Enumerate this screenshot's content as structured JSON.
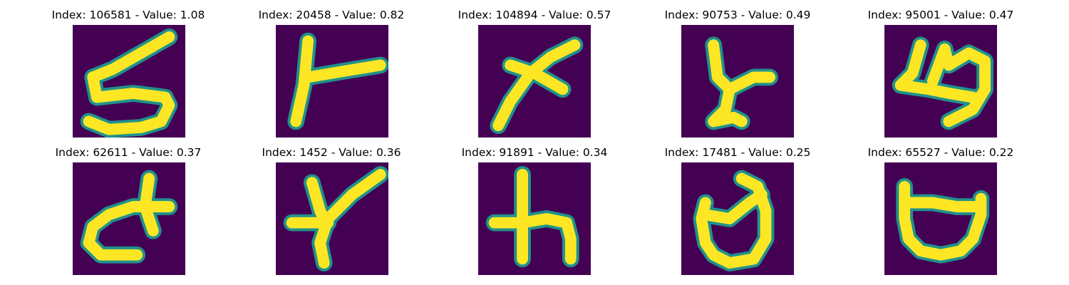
{
  "panels": [
    {
      "index": 106581,
      "value": "1.08",
      "title": "Index: 106581 - Value: 1.08",
      "glyph": "5"
    },
    {
      "index": 20458,
      "value": "0.82",
      "title": "Index: 20458 - Value: 0.82",
      "glyph": "ト"
    },
    {
      "index": 104894,
      "value": "0.57",
      "title": "Index: 104894 - Value: 0.57",
      "glyph": "x"
    },
    {
      "index": 90753,
      "value": "0.49",
      "title": "Index: 90753 - Value: 0.49",
      "glyph": "y"
    },
    {
      "index": 95001,
      "value": "0.47",
      "title": "Index: 95001 - Value: 0.47",
      "glyph": "y"
    },
    {
      "index": 62611,
      "value": "0.37",
      "title": "Index: 62611 - Value: 0.37",
      "glyph": "c"
    },
    {
      "index": 1452,
      "value": "0.36",
      "title": "Index: 1452 - Value: 0.36",
      "glyph": "Y"
    },
    {
      "index": 91891,
      "value": "0.34",
      "title": "Index: 91891 - Value: 0.34",
      "glyph": "h"
    },
    {
      "index": 17481,
      "value": "0.25",
      "title": "Index: 17481 - Value: 0.25",
      "glyph": "d"
    },
    {
      "index": 65527,
      "value": "0.22",
      "title": "Index: 65527 - Value: 0.22",
      "glyph": "U"
    }
  ],
  "colors": {
    "background": "#440154",
    "stroke": "#fde725",
    "edge": "#21918c"
  }
}
